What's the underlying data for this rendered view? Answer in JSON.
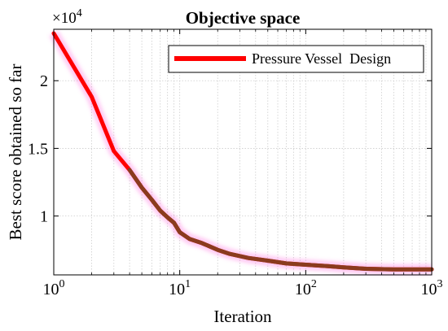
{
  "chart_data": {
    "type": "line",
    "title": "Objective space",
    "xlabel": "Iteration",
    "ylabel": "Best score obtained so far",
    "x_scale": "log",
    "xlim": [
      1,
      1000
    ],
    "ylim": [
      5650,
      23800
    ],
    "y_multiplier_label": "×10",
    "y_multiplier_exp": "4",
    "x_ticks": [
      {
        "value": 1,
        "base": "10",
        "exp": "0"
      },
      {
        "value": 10,
        "base": "10",
        "exp": "1"
      },
      {
        "value": 100,
        "base": "10",
        "exp": "2"
      },
      {
        "value": 1000,
        "base": "10",
        "exp": "3"
      }
    ],
    "y_ticks": [
      {
        "value": 10000,
        "label": "1"
      },
      {
        "value": 15000,
        "label": "1.5"
      },
      {
        "value": 20000,
        "label": "2"
      }
    ],
    "grid": true,
    "legend_position": "top-right",
    "series": [
      {
        "name": "Pressure Vessel  Design",
        "color": "#ff0000",
        "x": [
          1,
          2,
          3,
          4,
          5,
          6,
          7,
          8,
          9,
          10,
          12,
          15,
          20,
          25,
          35,
          50,
          70,
          100,
          150,
          200,
          300,
          500,
          1000
        ],
        "y": [
          23500,
          18800,
          14800,
          13400,
          12100,
          11200,
          10400,
          9900,
          9500,
          8800,
          8300,
          8000,
          7500,
          7200,
          6900,
          6700,
          6500,
          6400,
          6300,
          6200,
          6100,
          6060,
          6060
        ]
      }
    ]
  }
}
